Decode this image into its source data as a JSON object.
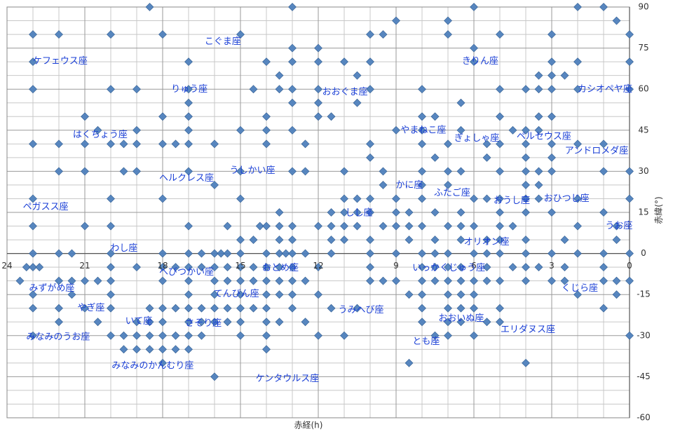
{
  "chart_data": {
    "type": "scatter",
    "xlabel": "赤経(h)",
    "ylabel": "赤緯(°)",
    "xlim": [
      24,
      0
    ],
    "ylim": [
      -60,
      90
    ],
    "xticks": [
      24,
      21,
      18,
      15,
      12,
      9,
      6,
      3,
      0
    ],
    "yticks": [
      90,
      75,
      60,
      45,
      30,
      15,
      0,
      -15,
      -30,
      -45,
      -60
    ],
    "grid": true,
    "color": "#4f81bd",
    "x": [
      18.5,
      13,
      6,
      2,
      1,
      9,
      7,
      0.5,
      23,
      22,
      20,
      18,
      15,
      10,
      9.5,
      7,
      5,
      3,
      0,
      13,
      12,
      6,
      23,
      17,
      14,
      13,
      12,
      11,
      10,
      6,
      3,
      2,
      0,
      13.5,
      10.5,
      3.5,
      3,
      2.5,
      23,
      20,
      19,
      17,
      14.5,
      13.5,
      13,
      12,
      10,
      8,
      5,
      4,
      3.5,
      3,
      2,
      0,
      17,
      13,
      12,
      10.5,
      6.5,
      21,
      18,
      17,
      14,
      12,
      11.5,
      8,
      7.5,
      5,
      3.5,
      3,
      20.5,
      19,
      17,
      15,
      14,
      13,
      9,
      8,
      6.5,
      4.5,
      4,
      3.5,
      23,
      22,
      21,
      20,
      19.5,
      19,
      18,
      17.5,
      17,
      16,
      14,
      12.5,
      10,
      8,
      7,
      5.5,
      5,
      4,
      3,
      2,
      1,
      10,
      7.5,
      5.5,
      4,
      3,
      22,
      21,
      19.5,
      19,
      17,
      15,
      13,
      12.5,
      11,
      9.5,
      8,
      7,
      6.5,
      5,
      4,
      3.5,
      3,
      1,
      0,
      16,
      9.5,
      8,
      7,
      4,
      3.5,
      23,
      20,
      18,
      15,
      11,
      10.5,
      10,
      9,
      8,
      6,
      5.5,
      5,
      4,
      3.5,
      2,
      0,
      13.5,
      11.5,
      11,
      10.5,
      10,
      9,
      8.5,
      7.5,
      6.5,
      5,
      4,
      3,
      1,
      23,
      21,
      20,
      17,
      15.5,
      14.25,
      14,
      13.5,
      13,
      12,
      11.5,
      11,
      10.5,
      9.5,
      9,
      8.5,
      8,
      7,
      6.5,
      6,
      5,
      4.5,
      2,
      0.5,
      15,
      14.5,
      13.5,
      13,
      11.5,
      11,
      10,
      8.5,
      7.5,
      6.5,
      5.5,
      5,
      4,
      2.5,
      0.5,
      23,
      22,
      21.5,
      20,
      18,
      17,
      16.5,
      16,
      15.75,
      15.5,
      15,
      14,
      13.5,
      13.25,
      13,
      12.5,
      11.5,
      10,
      9,
      8,
      7.5,
      7,
      6,
      5.5,
      5,
      4,
      3,
      2,
      1,
      0,
      23.25,
      23,
      22.75,
      20,
      19,
      18,
      17.5,
      17,
      16.5,
      16,
      15.5,
      15,
      14.5,
      14,
      13.5,
      13,
      12,
      10,
      8,
      7.5,
      7,
      6.5,
      5.5,
      4.5,
      4,
      3.5,
      2.5,
      1,
      23.5,
      22,
      21.5,
      21,
      20.5,
      20,
      18,
      17,
      16,
      15.5,
      15,
      14.5,
      14,
      13.5,
      13,
      12.5,
      10,
      9.5,
      9,
      8,
      7.5,
      7,
      6.5,
      6,
      5.5,
      5,
      4,
      3,
      2.5,
      1,
      0.5,
      0,
      23,
      21.5,
      20,
      17,
      16,
      15,
      14,
      13.5,
      13,
      12,
      8.5,
      8,
      7,
      6.5,
      6,
      2,
      0.5,
      23,
      22,
      21,
      20,
      18.5,
      18,
      17.5,
      17,
      16.5,
      16,
      15.5,
      15,
      14.5,
      14,
      13,
      11.5,
      10.5,
      8,
      7,
      6.5,
      6,
      5,
      1,
      22,
      20.5,
      19,
      18.5,
      18,
      17,
      16.5,
      16,
      15.5,
      15,
      14,
      13.5,
      12.5,
      8,
      7,
      6.5,
      5.5,
      5,
      23,
      20,
      19.5,
      19,
      18.5,
      18,
      17.5,
      17,
      16.5,
      15,
      14,
      12,
      11,
      7.5,
      7,
      6,
      0,
      19.5,
      19,
      18.5,
      18,
      17.5,
      17,
      14,
      18,
      8.5,
      4,
      16
    ],
    "values": [
      90,
      90,
      90,
      90,
      90,
      85,
      85,
      85,
      80,
      80,
      80,
      80,
      80,
      80,
      80,
      80,
      80,
      80,
      80,
      75,
      75,
      75,
      70,
      70,
      70,
      70,
      70,
      70,
      70,
      70,
      70,
      70,
      70,
      65,
      65,
      65,
      65,
      65,
      60,
      60,
      60,
      60,
      60,
      60,
      60,
      60,
      60,
      60,
      60,
      60,
      60,
      60,
      60,
      60,
      55,
      55,
      55,
      55,
      55,
      50,
      50,
      50,
      50,
      50,
      50,
      50,
      50,
      50,
      50,
      50,
      45,
      45,
      45,
      45,
      45,
      45,
      45,
      45,
      45,
      45,
      45,
      45,
      40,
      40,
      40,
      40,
      40,
      40,
      40,
      40,
      40,
      40,
      40,
      40,
      40,
      40,
      40,
      40,
      40,
      40,
      40,
      40,
      40,
      35,
      35,
      35,
      35,
      35,
      30,
      30,
      30,
      30,
      30,
      30,
      30,
      30,
      30,
      30,
      30,
      30,
      30,
      30,
      30,
      30,
      30,
      30,
      30,
      25,
      25,
      25,
      25,
      25,
      25,
      20,
      20,
      20,
      20,
      20,
      20,
      20,
      20,
      20,
      20,
      20,
      20,
      20,
      20,
      20,
      20,
      15,
      15,
      15,
      15,
      15,
      15,
      15,
      15,
      15,
      15,
      15,
      15,
      15,
      10,
      10,
      10,
      10,
      10,
      10,
      10,
      10,
      10,
      10,
      10,
      10,
      10,
      10,
      10,
      10,
      10,
      10,
      10,
      10,
      10,
      10,
      10,
      10,
      5,
      5,
      5,
      5,
      5,
      5,
      5,
      5,
      5,
      5,
      5,
      5,
      5,
      5,
      5,
      0,
      0,
      0,
      0,
      0,
      0,
      0,
      0,
      0,
      0,
      0,
      0,
      0,
      0,
      0,
      0,
      0,
      0,
      0,
      0,
      0,
      0,
      0,
      0,
      0,
      0,
      0,
      0,
      0,
      0,
      -5,
      -5,
      -5,
      -5,
      -5,
      -5,
      -5,
      -5,
      -5,
      -5,
      -5,
      -5,
      -5,
      -5,
      -5,
      -5,
      -5,
      -5,
      -5,
      -5,
      -5,
      -5,
      -5,
      -5,
      -5,
      -5,
      -5,
      -5,
      -10,
      -10,
      -10,
      -10,
      -10,
      -10,
      -10,
      -10,
      -10,
      -10,
      -10,
      -10,
      -10,
      -10,
      -10,
      -10,
      -10,
      -10,
      -10,
      -10,
      -10,
      -10,
      -10,
      -10,
      -10,
      -10,
      -10,
      -10,
      -10,
      -10,
      -10,
      -10,
      -15,
      -15,
      -15,
      -15,
      -15,
      -15,
      -15,
      -15,
      -15,
      -15,
      -15,
      -15,
      -15,
      -15,
      -15,
      -15,
      -15,
      -20,
      -20,
      -20,
      -20,
      -20,
      -20,
      -20,
      -20,
      -20,
      -20,
      -20,
      -20,
      -20,
      -20,
      -20,
      -20,
      -20,
      -20,
      -20,
      -20,
      -20,
      -20,
      -20,
      -25,
      -25,
      -25,
      -25,
      -25,
      -25,
      -25,
      -25,
      -25,
      -25,
      -25,
      -25,
      -25,
      -25,
      -25,
      -25,
      -25,
      -25,
      -30,
      -30,
      -30,
      -30,
      -30,
      -30,
      -30,
      -30,
      -30,
      -30,
      -30,
      -30,
      -30,
      -30,
      -30,
      -30,
      -30,
      -35,
      -35,
      -35,
      -35,
      -35,
      -35,
      -35,
      -40,
      -40,
      -40,
      -45
    ],
    "annotations": [
      {
        "text": "こぐま座",
        "x": 15.68,
        "y": 77.3
      },
      {
        "text": "ケフェウス座",
        "x": 21.95,
        "y": 70.1
      },
      {
        "text": "きりん座",
        "x": 5.76,
        "y": 70.1
      },
      {
        "text": "りゅう座",
        "x": 16.97,
        "y": 59.9
      },
      {
        "text": "おおぐま座",
        "x": 10.97,
        "y": 58.9
      },
      {
        "text": "カシオペヤ座",
        "x": 0.95,
        "y": 59.9
      },
      {
        "text": "はくちょう座",
        "x": 20.41,
        "y": 43.3
      },
      {
        "text": "やまねこ座",
        "x": 7.95,
        "y": 45.0
      },
      {
        "text": "ぎょしゃ座",
        "x": 5.89,
        "y": 42.0
      },
      {
        "text": "ペルセウス座",
        "x": 3.3,
        "y": 42.7
      },
      {
        "text": "アンドロメダ座",
        "x": 1.27,
        "y": 37.4
      },
      {
        "text": "うしかい座",
        "x": 14.54,
        "y": 30.2
      },
      {
        "text": "ヘルクレス座",
        "x": 17.08,
        "y": 27.4
      },
      {
        "text": "かに座",
        "x": 8.49,
        "y": 24.8
      },
      {
        "text": "ふたご座",
        "x": 6.84,
        "y": 22.0
      },
      {
        "text": "おうし座",
        "x": 4.54,
        "y": 19.2
      },
      {
        "text": "おひつじ座",
        "x": 2.43,
        "y": 20.0
      },
      {
        "text": "ペガスス座",
        "x": 22.51,
        "y": 16.9
      },
      {
        "text": "しし座",
        "x": 10.43,
        "y": 14.8
      },
      {
        "text": "うお座",
        "x": 0.41,
        "y": 10.0
      },
      {
        "text": "オリオン座",
        "x": 5.51,
        "y": 4.1
      },
      {
        "text": "わし座",
        "x": 19.49,
        "y": 1.8
      },
      {
        "text": "へびつかい座",
        "x": 17.08,
        "y": -6.9
      },
      {
        "text": "おとめ座",
        "x": 13.46,
        "y": -5.4
      },
      {
        "text": "いっかくじゅう座",
        "x": 6.97,
        "y": -5.4
      },
      {
        "text": "みずがめ座",
        "x": 22.27,
        "y": -12.8
      },
      {
        "text": "くじら座",
        "x": 1.92,
        "y": -12.8
      },
      {
        "text": "てんびん座",
        "x": 15.16,
        "y": -14.8
      },
      {
        "text": "やぎ座",
        "x": 20.76,
        "y": -20.0
      },
      {
        "text": "うみへび座",
        "x": 10.35,
        "y": -20.7
      },
      {
        "text": "いて座",
        "x": 18.92,
        "y": -24.8
      },
      {
        "text": "さそり座",
        "x": 16.43,
        "y": -25.6
      },
      {
        "text": "おおいぬ座",
        "x": 6.49,
        "y": -23.8
      },
      {
        "text": "エリダヌス座",
        "x": 3.92,
        "y": -27.9
      },
      {
        "text": "みなみのうお座",
        "x": 22.03,
        "y": -30.5
      },
      {
        "text": "とも座",
        "x": 7.84,
        "y": -32.2
      },
      {
        "text": "みなみのかんむり座",
        "x": 18.38,
        "y": -41.0
      },
      {
        "text": "ケンタウルス座",
        "x": 13.19,
        "y": -45.8
      }
    ]
  }
}
